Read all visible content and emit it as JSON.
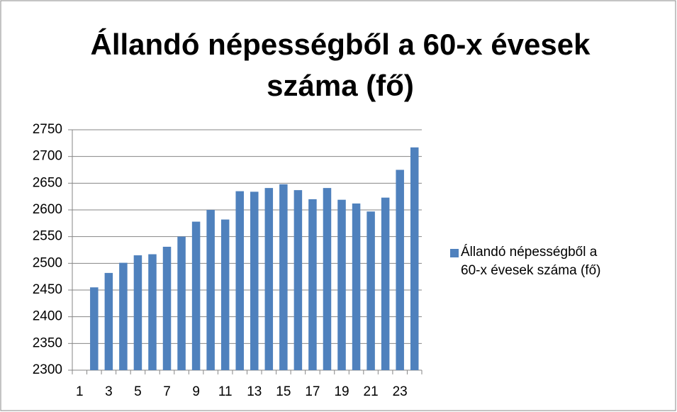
{
  "chart_data": {
    "type": "bar",
    "title": "Állandó népességből a 60-x évesek száma (fő)",
    "categories": [
      "1",
      null,
      "3",
      null,
      "5",
      null,
      "7",
      null,
      "9",
      null,
      "11",
      null,
      "13",
      null,
      "15",
      null,
      "17",
      null,
      "19",
      null,
      "21",
      null,
      "23",
      null
    ],
    "series": [
      {
        "name": "Állandó népességből a 60-x évesek száma (fő)",
        "color": "#4f81bd",
        "values": [
          null,
          2455,
          2482,
          2501,
          2515,
          2517,
          2531,
          2550,
          2578,
          2600,
          2582,
          2635,
          2634,
          2641,
          2648,
          2637,
          2620,
          2641,
          2619,
          2612,
          2597,
          2623,
          2675,
          2717
        ]
      }
    ],
    "ylim": [
      2300,
      2750
    ],
    "yticks": [
      2300,
      2350,
      2400,
      2450,
      2500,
      2550,
      2600,
      2650,
      2700,
      2750
    ],
    "grid": true,
    "legend": "right"
  }
}
